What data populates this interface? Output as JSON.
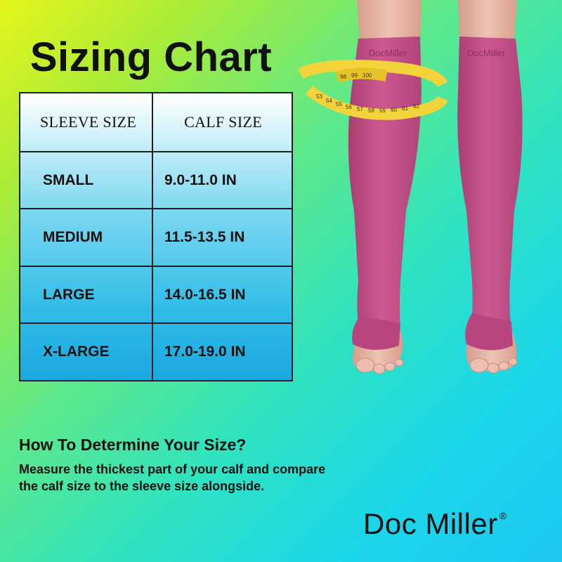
{
  "title": "Sizing Chart",
  "table": {
    "headers": [
      "SLEEVE SIZE",
      "CALF SIZE"
    ],
    "rows": [
      [
        "SMALL",
        "9.0-11.0 IN"
      ],
      [
        "MEDIUM",
        "11.5-13.5 IN"
      ],
      [
        "LARGE",
        "14.0-16.5 IN"
      ],
      [
        "X-LARGE",
        "17.0-19.0 IN"
      ]
    ]
  },
  "instructions": {
    "heading": "How To Determine Your Size?",
    "line1": "Measure the thickest part of your calf and compare",
    "line2": "the calf size to the sleeve size alongside."
  },
  "brand": {
    "name": "Doc Miller",
    "registered": "®",
    "sock_label": "DocMiller"
  },
  "tape_numbers": [
    "53",
    "54",
    "55",
    "56",
    "57",
    "58",
    "59",
    "60",
    "61",
    "62",
    "98",
    "99",
    "100"
  ],
  "colors": {
    "sock": "#c24f86",
    "sock_dark": "#a83d72",
    "skin": "#e9b6a6",
    "tape": "#f2d43a"
  },
  "image": {
    "subject": "legs wearing pink open-toe knee-high compression socks with measuring tape around calf"
  }
}
